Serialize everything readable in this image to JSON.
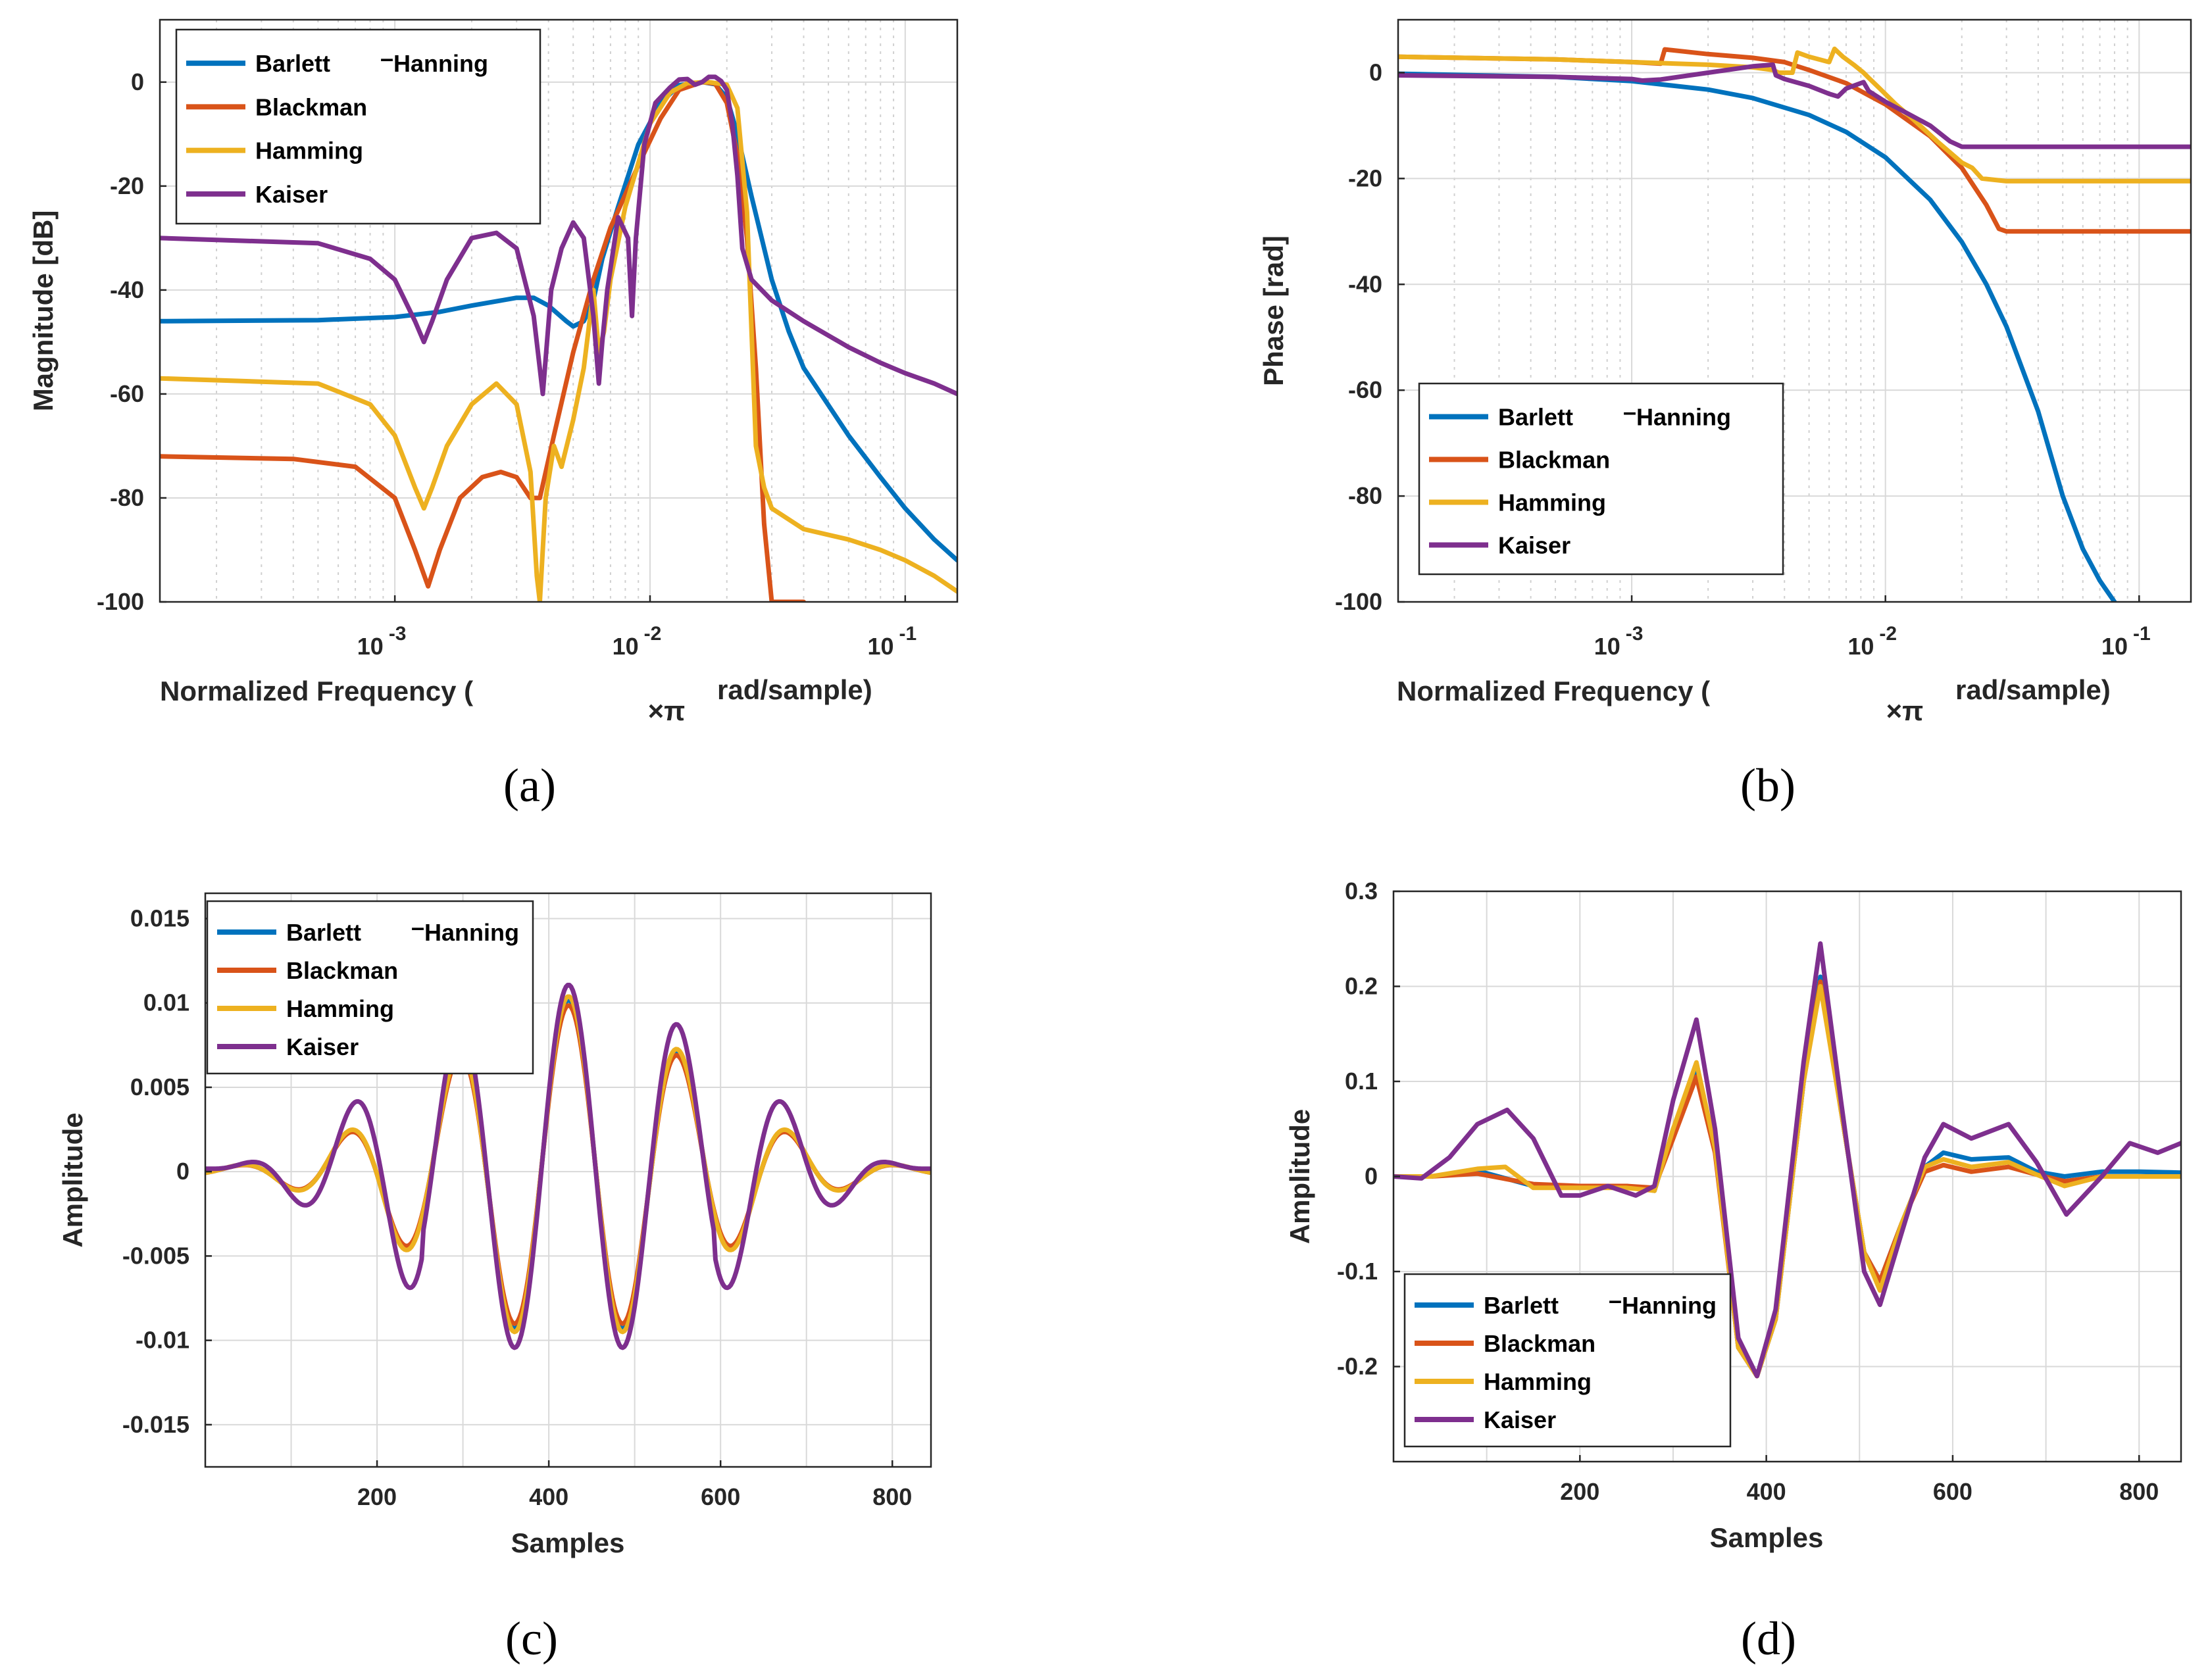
{
  "colors": {
    "barlett_hanning": "#0072BD",
    "blackman": "#D95319",
    "hamming": "#EDB120",
    "kaiser": "#7E2F8E"
  },
  "legend_labels": {
    "barlett": "Barlett",
    "hanning": "Hanning",
    "dash": "–",
    "blackman": "Blackman",
    "hamming": "Hamming",
    "kaiser": "Kaiser"
  },
  "chart_data": [
    {
      "id": "a",
      "type": "line",
      "caption": "(a)",
      "xscale": "log",
      "xlabel_parts": [
        "Normalized Frequency (",
        "×π",
        "rad/sample)"
      ],
      "ylabel": "Magnitude [dB]",
      "xlim": [
        0.00012,
        0.16
      ],
      "ylim": [
        -100,
        12
      ],
      "xticks": [
        {
          "base": "10",
          "exp": "-3"
        },
        {
          "base": "10",
          "exp": "-2"
        },
        {
          "base": "10",
          "exp": "-1"
        }
      ],
      "yticks": [
        "0",
        "-20",
        "-40",
        "-60",
        "-80",
        "-100"
      ],
      "legend_position": "top-left",
      "series": [
        {
          "name": "Barlett-Hanning",
          "color_key": "barlett_hanning",
          "x": [
            0.00012,
            0.0005,
            0.001,
            0.0015,
            0.002,
            0.003,
            0.0035,
            0.004,
            0.0047,
            0.005,
            0.0055,
            0.006,
            0.0065,
            0.0075,
            0.009,
            0.011,
            0.013,
            0.016,
            0.018,
            0.02,
            0.022,
            0.025,
            0.03,
            0.035,
            0.04,
            0.06,
            0.08,
            0.1,
            0.13,
            0.16
          ],
          "y": [
            -46,
            -45.8,
            -45.2,
            -44.2,
            -43,
            -41.5,
            -41.5,
            -43,
            -46,
            -47,
            -46,
            -42,
            -34,
            -24,
            -12,
            -4,
            -0.6,
            0,
            -0.4,
            -3,
            -10,
            -22,
            -38,
            -48,
            -55,
            -68,
            -76,
            -82,
            -88,
            -92
          ]
        },
        {
          "name": "Blackman",
          "color_key": "blackman",
          "x": [
            0.00012,
            0.0004,
            0.0007,
            0.001,
            0.0012,
            0.00135,
            0.0015,
            0.0018,
            0.0022,
            0.0026,
            0.003,
            0.0034,
            0.0037,
            0.0042,
            0.005,
            0.006,
            0.007,
            0.009,
            0.011,
            0.013,
            0.016,
            0.018,
            0.02,
            0.022,
            0.024,
            0.026,
            0.028,
            0.03,
            0.035,
            0.04
          ],
          "y": [
            -72,
            -72.5,
            -74,
            -80,
            -90,
            -97,
            -90,
            -80,
            -76,
            -75,
            -76,
            -80,
            -80,
            -68,
            -52,
            -38,
            -28,
            -16,
            -7,
            -1.5,
            0,
            -0.3,
            -4,
            -14,
            -30,
            -55,
            -85,
            -100,
            -100,
            -100
          ]
        },
        {
          "name": "Hamming",
          "color_key": "hamming",
          "x": [
            0.00012,
            0.0005,
            0.0008,
            0.001,
            0.0012,
            0.0013,
            0.0014,
            0.0016,
            0.002,
            0.0025,
            0.003,
            0.0034,
            0.0036,
            0.0037,
            0.0039,
            0.0042,
            0.0045,
            0.005,
            0.0055,
            0.006,
            0.0063,
            0.0066,
            0.007,
            0.008,
            0.01,
            0.012,
            0.014,
            0.017,
            0.02,
            0.022,
            0.024,
            0.026,
            0.028,
            0.03,
            0.04,
            0.06,
            0.08,
            0.1,
            0.13,
            0.16
          ],
          "y": [
            -57,
            -58,
            -62,
            -68,
            -78,
            -82,
            -78,
            -70,
            -62,
            -58,
            -62,
            -75,
            -95,
            -100,
            -80,
            -70,
            -74,
            -65,
            -55,
            -40,
            -52,
            -48,
            -38,
            -24,
            -8,
            -2,
            -0.2,
            0,
            -0.5,
            -5,
            -25,
            -70,
            -78,
            -82,
            -86,
            -88,
            -90,
            -92,
            -95,
            -98
          ]
        },
        {
          "name": "Kaiser",
          "color_key": "kaiser",
          "x": [
            0.00012,
            0.0005,
            0.0008,
            0.001,
            0.0012,
            0.0013,
            0.0014,
            0.0016,
            0.002,
            0.0025,
            0.003,
            0.0035,
            0.0038,
            0.0041,
            0.0045,
            0.005,
            0.0055,
            0.006,
            0.0063,
            0.0065,
            0.0068,
            0.0075,
            0.0082,
            0.0085,
            0.0088,
            0.0095,
            0.0105,
            0.012,
            0.013,
            0.014,
            0.015,
            0.016,
            0.017,
            0.018,
            0.019,
            0.02,
            0.021,
            0.022,
            0.023,
            0.025,
            0.03,
            0.04,
            0.06,
            0.08,
            0.1,
            0.13,
            0.16
          ],
          "y": [
            -30,
            -31,
            -34,
            -38,
            -46,
            -50,
            -46,
            -38,
            -30,
            -29,
            -32,
            -45,
            -60,
            -40,
            -32,
            -27,
            -30,
            -45,
            -58,
            -50,
            -40,
            -26,
            -30,
            -45,
            -30,
            -12,
            -4,
            -1,
            0.5,
            0.6,
            -0.5,
            0,
            1,
            1,
            0.2,
            -1.5,
            -8,
            -18,
            -32,
            -38,
            -42,
            -46,
            -51,
            -54,
            -56,
            -58,
            -60
          ]
        }
      ]
    },
    {
      "id": "b",
      "type": "line",
      "caption": "(b)",
      "xscale": "log",
      "xlabel_parts": [
        "Normalized Frequency (",
        "×π",
        "rad/sample)"
      ],
      "ylabel": "Phase [rad]",
      "xlim": [
        0.00012,
        0.16
      ],
      "ylim": [
        -100,
        10
      ],
      "xticks": [
        {
          "base": "10",
          "exp": "-3"
        },
        {
          "base": "10",
          "exp": "-2"
        },
        {
          "base": "10",
          "exp": "-1"
        }
      ],
      "yticks": [
        "0",
        "-20",
        "-40",
        "-60",
        "-80",
        "-100"
      ],
      "legend_position": "bottom-left",
      "series": [
        {
          "name": "Barlett-Hanning",
          "color_key": "barlett_hanning",
          "x": [
            0.00012,
            0.0005,
            0.001,
            0.002,
            0.003,
            0.005,
            0.007,
            0.01,
            0.015,
            0.02,
            0.025,
            0.03,
            0.04,
            0.05,
            0.06,
            0.07,
            0.08
          ],
          "y": [
            -0.2,
            -0.8,
            -1.6,
            -3.2,
            -4.8,
            -8,
            -11.2,
            -16,
            -24,
            -32,
            -40,
            -48,
            -64,
            -80,
            -90,
            -96,
            -100
          ]
        },
        {
          "name": "Blackman",
          "color_key": "blackman",
          "x": [
            0.00012,
            0.0005,
            0.001,
            0.0013,
            0.00135,
            0.002,
            0.003,
            0.004,
            0.005,
            0.007,
            0.01,
            0.015,
            0.02,
            0.025,
            0.028,
            0.03,
            0.05,
            0.08,
            0.1,
            0.16
          ],
          "y": [
            3,
            2.5,
            2,
            1.7,
            4.4,
            3.5,
            2.8,
            2,
            0.5,
            -2,
            -6,
            -12,
            -18,
            -25,
            -29.5,
            -30,
            -30,
            -30,
            -30,
            -30
          ]
        },
        {
          "name": "Hamming",
          "color_key": "hamming",
          "x": [
            0.00012,
            0.0005,
            0.001,
            0.002,
            0.003,
            0.0036,
            0.0038,
            0.0043,
            0.0045,
            0.005,
            0.006,
            0.0063,
            0.0068,
            0.0075,
            0.0082,
            0.0086,
            0.0095,
            0.011,
            0.013,
            0.016,
            0.02,
            0.022,
            0.024,
            0.03,
            0.05,
            0.08,
            0.1,
            0.16
          ],
          "y": [
            3,
            2.5,
            2,
            1.5,
            1,
            0.5,
            0,
            0,
            3.8,
            3,
            2,
            4.5,
            3,
            1.5,
            0,
            -1,
            -3,
            -6,
            -9,
            -13,
            -17,
            -18,
            -20,
            -20.5,
            -20.5,
            -20.5,
            -20.5,
            -20.5
          ]
        },
        {
          "name": "Kaiser",
          "color_key": "kaiser",
          "x": [
            0.00012,
            0.0005,
            0.001,
            0.0011,
            0.0013,
            0.002,
            0.003,
            0.0036,
            0.0037,
            0.004,
            0.005,
            0.006,
            0.0065,
            0.007,
            0.0082,
            0.0086,
            0.01,
            0.012,
            0.015,
            0.018,
            0.02,
            0.022,
            0.05,
            0.1,
            0.16
          ],
          "y": [
            -0.5,
            -0.8,
            -1.2,
            -1.5,
            -1.3,
            0,
            1.2,
            1.5,
            -0.5,
            -1.2,
            -2.5,
            -4,
            -4.5,
            -3,
            -1.8,
            -3.5,
            -5.5,
            -7.5,
            -10,
            -13,
            -14,
            -14,
            -14,
            -14,
            -14
          ]
        }
      ]
    },
    {
      "id": "c",
      "type": "line",
      "caption": "(c)",
      "xscale": "linear",
      "xlabel_parts": [
        "Samples"
      ],
      "ylabel": "Amplitude",
      "xlim": [
        0,
        845
      ],
      "ylim": [
        -0.0175,
        0.0165
      ],
      "xticks": [
        "200",
        "400",
        "600",
        "800"
      ],
      "yticks": [
        "0.015",
        "0.01",
        "0.005",
        "0",
        "-0.005",
        "-0.01",
        "-0.015"
      ],
      "legend_position": "top-left",
      "series": [
        {
          "name": "Barlett-Hanning",
          "color_key": "barlett_hanning",
          "scale": 0.96,
          "mode": "c"
        },
        {
          "name": "Blackman",
          "color_key": "blackman",
          "scale": 0.93,
          "mode": "c"
        },
        {
          "name": "Hamming",
          "color_key": "hamming",
          "scale": 0.98,
          "mode": "c"
        },
        {
          "name": "Kaiser",
          "color_key": "kaiser",
          "scale": 1.0,
          "mode": "c_kaiser"
        }
      ]
    },
    {
      "id": "d",
      "type": "line",
      "caption": "(d)",
      "xscale": "linear",
      "xlabel_parts": [
        "Samples"
      ],
      "ylabel": "Amplitude",
      "xlim": [
        0,
        845
      ],
      "ylim": [
        -0.3,
        0.3
      ],
      "xticks": [
        "200",
        "400",
        "600",
        "800"
      ],
      "yticks": [
        "0.3",
        "0.2",
        "0.1",
        "0",
        "-0.1",
        "-0.2"
      ],
      "legend_position": "bottom-left",
      "series": [
        {
          "name": "Barlett-Hanning",
          "color_key": "barlett_hanning",
          "x": [
            0,
            40,
            90,
            150,
            200,
            250,
            280,
            300,
            325,
            345,
            370,
            390,
            410,
            440,
            458,
            480,
            505,
            522,
            545,
            570,
            590,
            620,
            660,
            690,
            720,
            760,
            800,
            845
          ],
          "y": [
            0,
            0,
            0.006,
            -0.01,
            -0.012,
            -0.01,
            -0.015,
            0.05,
            0.11,
            0.03,
            -0.18,
            -0.21,
            -0.15,
            0.1,
            0.21,
            0.07,
            -0.08,
            -0.11,
            -0.05,
            0.01,
            0.025,
            0.018,
            0.02,
            0.005,
            0,
            0.005,
            0.005,
            0.004
          ]
        },
        {
          "name": "Blackman",
          "color_key": "blackman",
          "x": [
            0,
            40,
            90,
            150,
            200,
            250,
            280,
            300,
            325,
            345,
            370,
            390,
            410,
            440,
            458,
            480,
            505,
            522,
            545,
            570,
            590,
            620,
            660,
            690,
            720,
            760,
            800,
            845
          ],
          "y": [
            0,
            0,
            0.003,
            -0.008,
            -0.01,
            -0.01,
            -0.012,
            0.04,
            0.105,
            0.025,
            -0.18,
            -0.21,
            -0.15,
            0.1,
            0.205,
            0.07,
            -0.08,
            -0.11,
            -0.05,
            0.005,
            0.012,
            0.005,
            0.01,
            0.002,
            -0.005,
            0,
            0,
            0
          ]
        },
        {
          "name": "Hamming",
          "color_key": "hamming",
          "x": [
            0,
            40,
            90,
            120,
            150,
            200,
            250,
            280,
            300,
            325,
            345,
            370,
            390,
            410,
            440,
            458,
            480,
            505,
            522,
            545,
            570,
            590,
            620,
            660,
            690,
            720,
            760,
            800,
            845
          ],
          "y": [
            0,
            0,
            0.008,
            0.01,
            -0.012,
            -0.012,
            -0.012,
            -0.015,
            0.05,
            0.12,
            0.03,
            -0.18,
            -0.21,
            -0.15,
            0.1,
            0.2,
            0.07,
            -0.08,
            -0.12,
            -0.05,
            0.01,
            0.018,
            0.01,
            0.015,
            0.002,
            -0.01,
            0,
            0,
            0
          ]
        },
        {
          "name": "Kaiser",
          "color_key": "kaiser",
          "x": [
            0,
            30,
            60,
            90,
            122,
            150,
            180,
            200,
            230,
            260,
            280,
            300,
            325,
            345,
            370,
            390,
            410,
            440,
            458,
            480,
            505,
            522,
            545,
            570,
            590,
            620,
            660,
            690,
            722,
            760,
            790,
            820,
            845
          ],
          "y": [
            0,
            -0.002,
            0.02,
            0.055,
            0.07,
            0.04,
            -0.02,
            -0.02,
            -0.01,
            -0.02,
            -0.01,
            0.08,
            0.165,
            0.05,
            -0.17,
            -0.21,
            -0.14,
            0.12,
            0.245,
            0.08,
            -0.1,
            -0.135,
            -0.06,
            0.02,
            0.055,
            0.04,
            0.055,
            0.015,
            -0.04,
            0,
            0.035,
            0.025,
            0.035
          ]
        }
      ]
    }
  ]
}
